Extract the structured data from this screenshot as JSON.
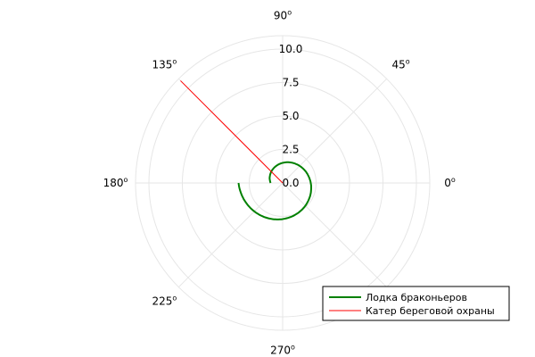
{
  "chart_data": {
    "type": "line",
    "projection": "polar",
    "title": "",
    "radial_ticks": [
      "0.0",
      "2.5",
      "5.0",
      "7.5",
      "10.0"
    ],
    "radial_tick_values": [
      0,
      2.5,
      5,
      7.5,
      10
    ],
    "rlim": [
      0,
      11
    ],
    "angular_ticks": [
      {
        "angle": 0,
        "label": "0",
        "suffix": "o"
      },
      {
        "angle": 45,
        "label": "45",
        "suffix": "o"
      },
      {
        "angle": 90,
        "label": "90",
        "suffix": "o"
      },
      {
        "angle": 135,
        "label": "135",
        "suffix": "o"
      },
      {
        "angle": 180,
        "label": "180",
        "suffix": "o"
      },
      {
        "angle": 225,
        "label": "225",
        "suffix": "o"
      },
      {
        "angle": 270,
        "label": "270",
        "suffix": "o"
      },
      {
        "angle": 315,
        "label": "",
        "suffix": ""
      }
    ],
    "grid": true,
    "legend_position": "bottom-right",
    "series": [
      {
        "name": "Лодка браконьеров",
        "color": "#008000",
        "kind": "spiral",
        "start_angle_deg": 180,
        "end_angle_deg": 540,
        "r_start": 3.3,
        "r_end": 0.9
      },
      {
        "name": "Катер береговой охраны",
        "color": "#ff0000",
        "kind": "ray",
        "theta_deg": 135,
        "r_from": 0,
        "r_to": 10.8
      }
    ]
  }
}
